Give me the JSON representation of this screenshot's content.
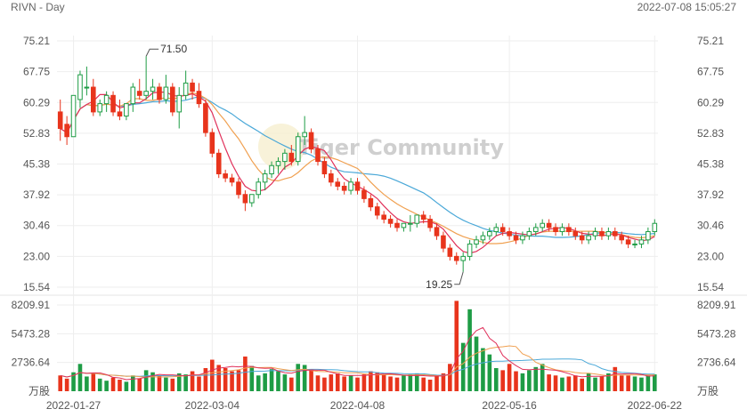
{
  "header": {
    "symbol_period": "RIVN - Day",
    "datetime": "2022-07-08 15:05:27"
  },
  "watermark": "Tiger Community",
  "colors": {
    "up": "#1e9c45",
    "down": "#e8341c",
    "ma5": "#e0305a",
    "ma10": "#f0a050",
    "ma20": "#4aa8d8",
    "grid": "#eeeeee"
  },
  "chart_data": {
    "type": "candlestick",
    "price_axis": {
      "min": 15.54,
      "max": 75.21,
      "ticks": [
        "75.21",
        "67.75",
        "60.29",
        "52.83",
        "45.38",
        "37.92",
        "30.46",
        "23.00",
        "15.54"
      ]
    },
    "volume_axis": {
      "min": 0,
      "max": 8209.91,
      "ticks": [
        "8209.91",
        "5473.28",
        "2736.64"
      ],
      "unit_label": "万股"
    },
    "x_labels": [
      "2022-01-27",
      "2022-03-04",
      "2022-04-08",
      "2022-05-16",
      "2022-06-22"
    ],
    "annotations": [
      {
        "text": "71.50",
        "index": 13,
        "value": 71.5
      },
      {
        "text": "19.25",
        "index": 61,
        "value": 19.25
      }
    ],
    "candles": [
      [
        58,
        61,
        51,
        54
      ],
      [
        55,
        57,
        50,
        52
      ],
      [
        52,
        62,
        52,
        62
      ],
      [
        61,
        68,
        59,
        67
      ],
      [
        64,
        69,
        62,
        64
      ],
      [
        64,
        66,
        57,
        58
      ],
      [
        58,
        61,
        57,
        60
      ],
      [
        60,
        63,
        58,
        62
      ],
      [
        62,
        63,
        57,
        58
      ],
      [
        58,
        61,
        56,
        57
      ],
      [
        57,
        60,
        56,
        60
      ],
      [
        60,
        65,
        58,
        64
      ],
      [
        63,
        66,
        61,
        62
      ],
      [
        62,
        71.5,
        61,
        63
      ],
      [
        63,
        66,
        61,
        64
      ],
      [
        64,
        65,
        60,
        61
      ],
      [
        61,
        67,
        60,
        64
      ],
      [
        64,
        65,
        57,
        58
      ],
      [
        58,
        64,
        54,
        62
      ],
      [
        62,
        68,
        61,
        65
      ],
      [
        65,
        66,
        61,
        63
      ],
      [
        63,
        65,
        59,
        60
      ],
      [
        60,
        61,
        52,
        53
      ],
      [
        53,
        54,
        47,
        48
      ],
      [
        48,
        49,
        42,
        43
      ],
      [
        43,
        44,
        41,
        42
      ],
      [
        42,
        43,
        40,
        41
      ],
      [
        41,
        42,
        37,
        38
      ],
      [
        38,
        39,
        34,
        36
      ],
      [
        36,
        38,
        35,
        38
      ],
      [
        38,
        42,
        37,
        41
      ],
      [
        41,
        44,
        39,
        43
      ],
      [
        43,
        46,
        42,
        45
      ],
      [
        45,
        47,
        43,
        46
      ],
      [
        46,
        49,
        44,
        48
      ],
      [
        48,
        50,
        45,
        46
      ],
      [
        46,
        53,
        45,
        52
      ],
      [
        52,
        57,
        50,
        53
      ],
      [
        53,
        54,
        48,
        49
      ],
      [
        49,
        50,
        45,
        46
      ],
      [
        46,
        47,
        42,
        43
      ],
      [
        43,
        44,
        40,
        41
      ],
      [
        41,
        42,
        39,
        40
      ],
      [
        40,
        41,
        38,
        39
      ],
      [
        39,
        42,
        38,
        41
      ],
      [
        41,
        42,
        38,
        39
      ],
      [
        39,
        40,
        36,
        37
      ],
      [
        37,
        38,
        34,
        35
      ],
      [
        35,
        36,
        32,
        33
      ],
      [
        33,
        34,
        31,
        32
      ],
      [
        32,
        33,
        30,
        31
      ],
      [
        31,
        32,
        29,
        30
      ],
      [
        30,
        31,
        29,
        31
      ],
      [
        31,
        33,
        29,
        31
      ],
      [
        31,
        33,
        30,
        33
      ],
      [
        33,
        34,
        31,
        32
      ],
      [
        32,
        33,
        29,
        30
      ],
      [
        30,
        31,
        27,
        28
      ],
      [
        28,
        29,
        24,
        25
      ],
      [
        25,
        26,
        22,
        23
      ],
      [
        23,
        24,
        21,
        22
      ],
      [
        22,
        24,
        19.25,
        23
      ],
      [
        23,
        27,
        22,
        26
      ],
      [
        26,
        28,
        25,
        27
      ],
      [
        27,
        29,
        26,
        28
      ],
      [
        28,
        30,
        27,
        29
      ],
      [
        29,
        31,
        28,
        30
      ],
      [
        30,
        31,
        28,
        29
      ],
      [
        29,
        30,
        27,
        28
      ],
      [
        28,
        29,
        26,
        27
      ],
      [
        27,
        29,
        26,
        28
      ],
      [
        28,
        30,
        27,
        29
      ],
      [
        29,
        31,
        28,
        30
      ],
      [
        30,
        32,
        29,
        31
      ],
      [
        31,
        32,
        29,
        30
      ],
      [
        30,
        31,
        28,
        29
      ],
      [
        29,
        31,
        28,
        30
      ],
      [
        30,
        31,
        28,
        29
      ],
      [
        29,
        30,
        27,
        28
      ],
      [
        28,
        29,
        26,
        27
      ],
      [
        27,
        29,
        26,
        28
      ],
      [
        28,
        30,
        27,
        29
      ],
      [
        29,
        30,
        27,
        28
      ],
      [
        28,
        30,
        27,
        29
      ],
      [
        29,
        30,
        27,
        28
      ],
      [
        28,
        29,
        26,
        27
      ],
      [
        27,
        28,
        25,
        26
      ],
      [
        26,
        27,
        25,
        26
      ],
      [
        26,
        28,
        25,
        27
      ],
      [
        27,
        30,
        26,
        29
      ],
      [
        29,
        32,
        28,
        31
      ]
    ],
    "volumes": [
      1500,
      1200,
      1800,
      2600,
      1400,
      1700,
      1200,
      1000,
      1300,
      1100,
      900,
      1500,
      1200,
      2000,
      1800,
      1500,
      1300,
      1200,
      1700,
      1600,
      1900,
      1400,
      2200,
      3000,
      2500,
      2200,
      1900,
      2000,
      3300,
      2400,
      1500,
      1700,
      2100,
      1900,
      1600,
      1300,
      2600,
      2500,
      2100,
      1500,
      1300,
      1600,
      1700,
      1400,
      1500,
      1300,
      1600,
      1900,
      1800,
      1600,
      1400,
      1300,
      1500,
      1600,
      1700,
      1300,
      1100,
      1500,
      1700,
      2600,
      8600,
      4600,
      7800,
      5200,
      4100,
      3500,
      2200,
      2000,
      2600,
      1900,
      1700,
      2000,
      2300,
      2600,
      1600,
      1500,
      1300,
      1400,
      1500,
      1200,
      1700,
      1300,
      1400,
      1700,
      2300,
      1500,
      1500,
      1400,
      1300,
      1500,
      1600
    ]
  }
}
